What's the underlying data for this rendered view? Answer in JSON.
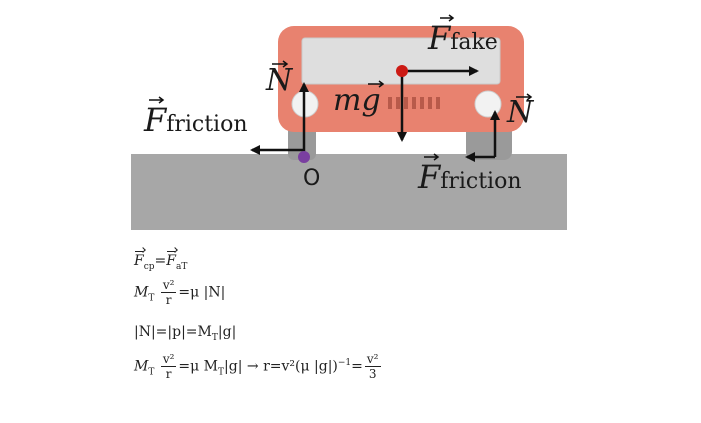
{
  "labels": {
    "fake_F": "F",
    "fake_sub": "fake",
    "normal_left": "N",
    "normal_right": "N",
    "friction_left_F": "F",
    "friction_left_sub": "friction",
    "friction_right_F": "F",
    "friction_right_sub": "friction",
    "weight_m": "m",
    "weight_g": "g",
    "point_label": "O"
  },
  "equations": {
    "eq1_lhs_F": "F",
    "eq1_lhs_sub": "cp",
    "eq1_eq": "=",
    "eq1_rhs_F": "F",
    "eq1_rhs_sub": "aT",
    "eq2_M": "M",
    "eq2_T": "T",
    "eq2_num": "v²",
    "eq2_den": "r",
    "eq2_rhs": "=μ |N|",
    "eq3": "|N|=|p|=M",
    "eq3_T": "T",
    "eq3_tail": "|g|",
    "eq4_M": "M",
    "eq4_T": "T",
    "eq4_num": "v²",
    "eq4_den": "r",
    "eq4_mid": "=μ M",
    "eq4_T2": "T",
    "eq4_mid2": "|g| → r=v²(μ |g|)",
    "eq4_exp": "−1",
    "eq4_eq": "=",
    "eq4_num2": "v²",
    "eq4_den2": "3"
  },
  "colors": {
    "ground": "#a7a7a7",
    "car_body": "#e8826f",
    "window": "#dedede",
    "wheel": "#9a9a9a",
    "pivot_point": "#7a3fa0",
    "cm_point": "#cc1a14",
    "arrow": "#111111"
  }
}
